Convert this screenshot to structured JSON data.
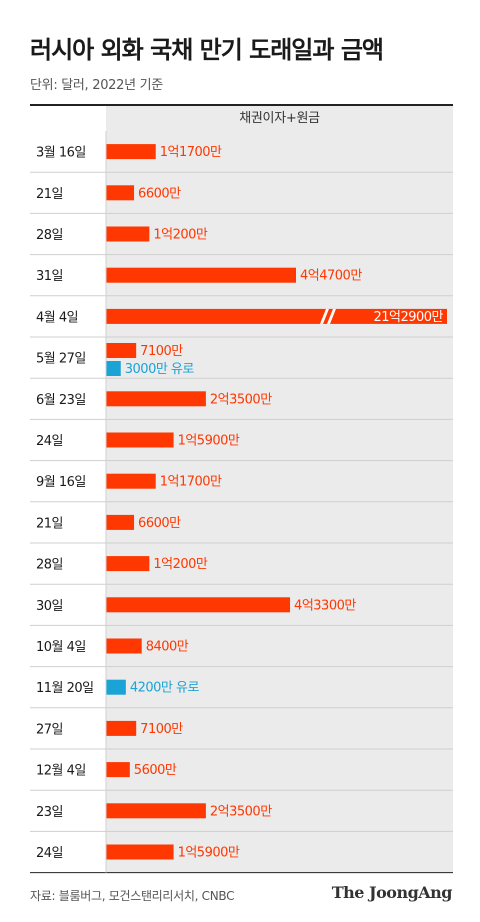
{
  "title": "러시아 외화 국채 만기 도래일과 금액",
  "unit_note": "단위: 달러, 2022년 기준",
  "source": "자료: 블룸버그, 모건스탠리리서치, CNBC",
  "brand": "The JoongAng",
  "chart_data": {
    "type": "bar",
    "orientation": "horizontal",
    "column_header": "채권이자+원금",
    "axis_break_on": "4월 4일",
    "colors": {
      "usd": "#ff3700",
      "eur": "#1aa3d6",
      "row_bg": "#ebebeb",
      "divider": "#ffffff"
    },
    "categories": [
      "3월 16일",
      "21일",
      "28일",
      "31일",
      "4월 4일",
      "5월 27일",
      "6월 23일",
      "24일",
      "9월 16일",
      "21일",
      "28일",
      "30일",
      "10월 4일",
      "11월 20일",
      "27일",
      "12월 4일",
      "23일",
      "24일"
    ],
    "series": [
      {
        "currency": "USD",
        "values": [
          117000000,
          66000000,
          102000000,
          447000000,
          2129000000,
          71000000,
          235000000,
          159000000,
          117000000,
          66000000,
          102000000,
          433000000,
          84000000,
          null,
          71000000,
          56000000,
          235000000,
          159000000
        ],
        "labels": [
          "1억1700만",
          "6600만",
          "1억200만",
          "4억4700만",
          "21억2900만",
          "7100만",
          "2억3500만",
          "1억5900만",
          "1억1700만",
          "6600만",
          "1억200만",
          "4억3300만",
          "8400만",
          "",
          "7100만",
          "5600만",
          "2억3500만",
          "1억5900만"
        ]
      },
      {
        "currency": "EUR",
        "values": [
          null,
          null,
          null,
          null,
          null,
          30000000,
          null,
          null,
          null,
          null,
          null,
          null,
          null,
          42000000,
          null,
          null,
          null,
          null
        ],
        "labels": [
          "",
          "",
          "",
          "",
          "",
          "3000만 유로",
          "",
          "",
          "",
          "",
          "",
          "",
          "",
          "4200만 유로",
          "",
          "",
          "",
          ""
        ]
      }
    ]
  }
}
